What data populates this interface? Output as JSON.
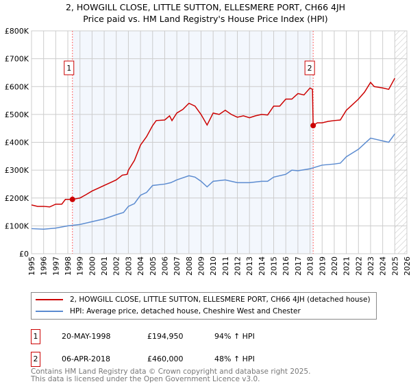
{
  "title": "2, HOWGILL CLOSE, LITTLE SUTTON, ELLESMERE PORT, CH66 4JH",
  "subtitle": "Price paid vs. HM Land Registry's House Price Index (HPI)",
  "chart_data": {
    "type": "line",
    "title": "Price paid vs. HM Land Registry's House Price Index (HPI)",
    "xlim": [
      1995,
      2026
    ],
    "ylim": [
      0,
      800000
    ],
    "yticks": [
      {
        "v": 0,
        "label": "£0"
      },
      {
        "v": 100000,
        "label": "£100K"
      },
      {
        "v": 200000,
        "label": "£200K"
      },
      {
        "v": 300000,
        "label": "£300K"
      },
      {
        "v": 400000,
        "label": "£400K"
      },
      {
        "v": 500000,
        "label": "£500K"
      },
      {
        "v": 600000,
        "label": "£600K"
      },
      {
        "v": 700000,
        "label": "£700K"
      },
      {
        "v": 800000,
        "label": "£800K"
      }
    ],
    "xticks": [
      "1995",
      "1996",
      "1997",
      "1998",
      "1999",
      "2000",
      "2001",
      "2002",
      "2003",
      "2004",
      "2005",
      "2006",
      "2007",
      "2008",
      "2009",
      "2010",
      "2011",
      "2012",
      "2013",
      "2014",
      "2015",
      "2016",
      "2017",
      "2018",
      "2019",
      "2020",
      "2021",
      "2022",
      "2023",
      "2024",
      "2025",
      "2026"
    ],
    "grid": true,
    "shaded_range": [
      1998.38,
      2018.26
    ],
    "forecast_hatch_from": 2025.0,
    "series": [
      {
        "name": "2, HOWGILL CLOSE, LITTLE SUTTON, ELLESMERE PORT, CH66 4JH (detached house)",
        "color": "#cc0000",
        "x": [
          1995,
          1995.5,
          1996,
          1996.5,
          1997,
          1997.5,
          1997.8,
          1998.38,
          1999,
          1999.5,
          2000,
          2000.5,
          2001,
          2001.5,
          2002,
          2002.5,
          2002.9,
          2003,
          2003.5,
          2004,
          2004.5,
          2005,
          2005.3,
          2006,
          2006.4,
          2006.6,
          2007,
          2007.5,
          2008,
          2008.5,
          2009,
          2009.5,
          2010,
          2010.5,
          2011,
          2011.5,
          2012,
          2012.5,
          2013,
          2013.5,
          2014,
          2014.5,
          2015,
          2015.5,
          2016,
          2016.5,
          2017,
          2017.5,
          2018,
          2018.2,
          2018.26,
          2018.6,
          2019,
          2019.5,
          2020,
          2020.5,
          2021,
          2021.5,
          2022,
          2022.5,
          2023,
          2023.3,
          2024,
          2024.5,
          2025
        ],
        "y": [
          175000,
          170000,
          170000,
          168000,
          178000,
          178000,
          195000,
          194950,
          200000,
          212000,
          225000,
          235000,
          245000,
          255000,
          265000,
          282000,
          285000,
          300000,
          335000,
          390000,
          420000,
          460000,
          478000,
          480000,
          495000,
          478000,
          505000,
          518000,
          540000,
          530000,
          500000,
          462000,
          505000,
          500000,
          515000,
          500000,
          490000,
          495000,
          488000,
          495000,
          500000,
          498000,
          530000,
          530000,
          555000,
          555000,
          575000,
          570000,
          595000,
          590000,
          460000,
          470000,
          470000,
          475000,
          478000,
          480000,
          515000,
          535000,
          555000,
          580000,
          615000,
          600000,
          595000,
          590000,
          630000
        ]
      },
      {
        "name": "HPI: Average price, detached house, Cheshire West and Chester",
        "color": "#5b8bd0",
        "x": [
          1995,
          1996,
          1997,
          1998,
          1999,
          2000,
          2001,
          2002,
          2002.6,
          2003,
          2003.5,
          2004,
          2004.5,
          2005,
          2006,
          2006.5,
          2007,
          2008,
          2008.5,
          2009,
          2009.5,
          2010,
          2011,
          2012,
          2013,
          2014,
          2014.5,
          2015,
          2016,
          2016.5,
          2017,
          2018,
          2019,
          2020,
          2020.5,
          2021,
          2022,
          2022.5,
          2023,
          2023.5,
          2024,
          2024.5,
          2025
        ],
        "y": [
          90000,
          88000,
          92000,
          100000,
          105000,
          115000,
          125000,
          140000,
          148000,
          170000,
          180000,
          210000,
          220000,
          245000,
          250000,
          255000,
          265000,
          280000,
          275000,
          260000,
          240000,
          260000,
          265000,
          255000,
          255000,
          260000,
          260000,
          275000,
          285000,
          300000,
          298000,
          305000,
          318000,
          322000,
          325000,
          348000,
          375000,
          395000,
          415000,
          410000,
          405000,
          400000,
          430000
        ]
      }
    ],
    "annotations": [
      {
        "label": "1",
        "x": 1998.38,
        "y": 194950
      },
      {
        "label": "2",
        "x": 2018.26,
        "y": 460000
      }
    ]
  },
  "legend": {
    "items": [
      "2, HOWGILL CLOSE, LITTLE SUTTON, ELLESMERE PORT, CH66 4JH (detached house)",
      "HPI: Average price, detached house, Cheshire West and Chester"
    ]
  },
  "sales": [
    {
      "num": "1",
      "date": "20-MAY-1998",
      "price": "£194,950",
      "hpi": "94% ↑ HPI"
    },
    {
      "num": "2",
      "date": "06-APR-2018",
      "price": "£460,000",
      "hpi": "48% ↑ HPI"
    }
  ],
  "footer": {
    "line1": "Contains HM Land Registry data © Crown copyright and database right 2025.",
    "line2": "This data is licensed under the Open Government Licence v3.0."
  }
}
